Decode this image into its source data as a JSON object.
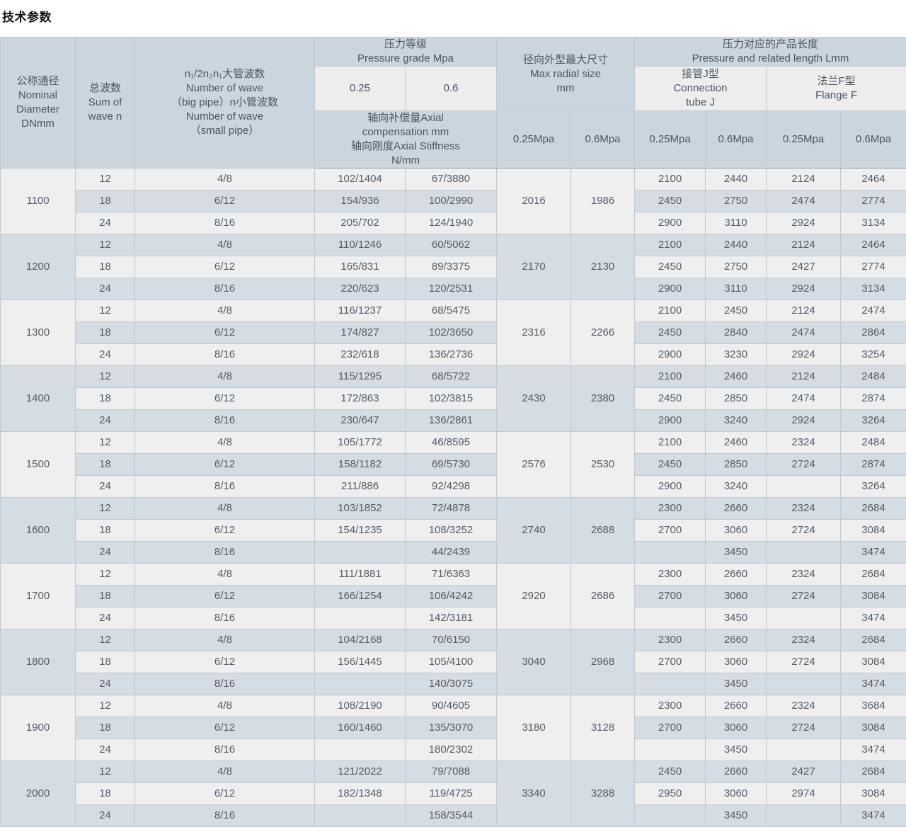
{
  "page": {
    "title": "技术参数"
  },
  "table": {
    "header": {
      "dn": "公称通径\nNominal\nDiameter\nDNmm",
      "waves": "总波数\nSum of\nwave n",
      "pipe": "n₁/2n₂n₁大管波数\nNumber of wave\n（big pipe）n小管波数\nNumber of wave\n（small pipe）",
      "pressure_grade": "压力等级\nPressure grade Mpa",
      "p025": "0.25",
      "p06": "0.6",
      "axial": "轴向补偿量Axial\ncompensation mm\n轴向刚度Axial Stiffness\nN/mm",
      "radial": "径向外型最大尺寸\nMax radial size\nmm",
      "length": "压力对应的产品长度\nPressure and related length Lmm",
      "tube_j": "接管J型\nConnection\ntube J",
      "flange_f": "法兰F型\nFlange F",
      "mpa025": "0.25Mpa",
      "mpa06": "0.6Mpa"
    },
    "colors": {
      "header_blue": "#cad5dd",
      "header_light": "#ededee",
      "row_light": "#efeff0",
      "row_blue": "#d4dde3"
    },
    "groups": [
      {
        "dn": "1100",
        "radial": [
          "2016",
          "1986"
        ],
        "rows": [
          [
            "12",
            "4/8",
            "102/1404",
            "67/3880",
            "2100",
            "2440",
            "2124",
            "2464"
          ],
          [
            "18",
            "6/12",
            "154/936",
            "100/2990",
            "2450",
            "2750",
            "2474",
            "2774"
          ],
          [
            "24",
            "8/16",
            "205/702",
            "124/1940",
            "2900",
            "3110",
            "2924",
            "3134"
          ]
        ]
      },
      {
        "dn": "1200",
        "radial": [
          "2170",
          "2130"
        ],
        "rows": [
          [
            "12",
            "4/8",
            "110/1246",
            "60/5062",
            "2100",
            "2440",
            "2124",
            "2464"
          ],
          [
            "18",
            "6/12",
            "165/831",
            "89/3375",
            "2450",
            "2750",
            "2427",
            "2774"
          ],
          [
            "24",
            "8/16",
            "220/623",
            "120/2531",
            "2900",
            "3110",
            "2924",
            "3134"
          ]
        ]
      },
      {
        "dn": "1300",
        "radial": [
          "2316",
          "2266"
        ],
        "rows": [
          [
            "12",
            "4/8",
            "116/1237",
            "68/5475",
            "2100",
            "2450",
            "2124",
            "2474"
          ],
          [
            "18",
            "6/12",
            "174/827",
            "102/3650",
            "2450",
            "2840",
            "2474",
            "2864"
          ],
          [
            "24",
            "8/16",
            "232/618",
            "136/2736",
            "2900",
            "3230",
            "2924",
            "3254"
          ]
        ]
      },
      {
        "dn": "1400",
        "radial": [
          "2430",
          "2380"
        ],
        "rows": [
          [
            "12",
            "4/8",
            "115/1295",
            "68/5722",
            "2100",
            "2460",
            "2124",
            "2484"
          ],
          [
            "18",
            "6/12",
            "172/863",
            "102/3815",
            "2450",
            "2850",
            "2474",
            "2874"
          ],
          [
            "24",
            "8/16",
            "230/647",
            "136/2861",
            "2900",
            "3240",
            "2924",
            "3264"
          ]
        ]
      },
      {
        "dn": "1500",
        "radial": [
          "2576",
          "2530"
        ],
        "rows": [
          [
            "12",
            "4/8",
            "105/1772",
            "46/8595",
            "2100",
            "2460",
            "2324",
            "2484"
          ],
          [
            "18",
            "6/12",
            "158/1182",
            "69/5730",
            "2450",
            "2850",
            "2724",
            "2874"
          ],
          [
            "24",
            "8/16",
            "211/886",
            "92/4298",
            "2900",
            "3240",
            "",
            "3264"
          ]
        ]
      },
      {
        "dn": "1600",
        "radial": [
          "2740",
          "2688"
        ],
        "rows": [
          [
            "12",
            "4/8",
            "103/1852",
            "72/4878",
            "2300",
            "2660",
            "2324",
            "2684"
          ],
          [
            "18",
            "6/12",
            "154/1235",
            "108/3252",
            "2700",
            "3060",
            "2724",
            "3084"
          ],
          [
            "24",
            "8/16",
            "",
            "44/2439",
            "",
            "3450",
            "",
            "3474"
          ]
        ]
      },
      {
        "dn": "1700",
        "radial": [
          "2920",
          "2686"
        ],
        "rows": [
          [
            "12",
            "4/8",
            "111/1881",
            "71/6363",
            "2300",
            "2660",
            "2324",
            "2684"
          ],
          [
            "18",
            "6/12",
            "166/1254",
            "106/4242",
            "2700",
            "3060",
            "2724",
            "3084"
          ],
          [
            "24",
            "8/16",
            "",
            "142/3181",
            "",
            "3450",
            "",
            "3474"
          ]
        ]
      },
      {
        "dn": "1800",
        "radial": [
          "3040",
          "2968"
        ],
        "rows": [
          [
            "12",
            "4/8",
            "104/2168",
            "70/6150",
            "2300",
            "2660",
            "2324",
            "2684"
          ],
          [
            "18",
            "6/12",
            "156/1445",
            "105/4100",
            "2700",
            "3060",
            "2724",
            "3084"
          ],
          [
            "24",
            "8/16",
            "",
            "140/3075",
            "",
            "3450",
            "",
            "3474"
          ]
        ]
      },
      {
        "dn": "1900",
        "radial": [
          "3180",
          "3128"
        ],
        "rows": [
          [
            "12",
            "4/8",
            "108/2190",
            "90/4605",
            "2300",
            "2660",
            "2324",
            "3684"
          ],
          [
            "18",
            "6/12",
            "160/1460",
            "135/3070",
            "2700",
            "3060",
            "2724",
            "3084"
          ],
          [
            "24",
            "8/16",
            "",
            "180/2302",
            "",
            "3450",
            "",
            "3474"
          ]
        ]
      },
      {
        "dn": "2000",
        "radial": [
          "3340",
          "3288"
        ],
        "rows": [
          [
            "12",
            "4/8",
            "121/2022",
            "79/7088",
            "2450",
            "2660",
            "2427",
            "2684"
          ],
          [
            "18",
            "6/12",
            "182/1348",
            "119/4725",
            "2950",
            "3060",
            "2974",
            "3084"
          ],
          [
            "24",
            "8/16",
            "",
            "158/3544",
            "",
            "3450",
            "",
            "3474"
          ]
        ]
      }
    ]
  }
}
